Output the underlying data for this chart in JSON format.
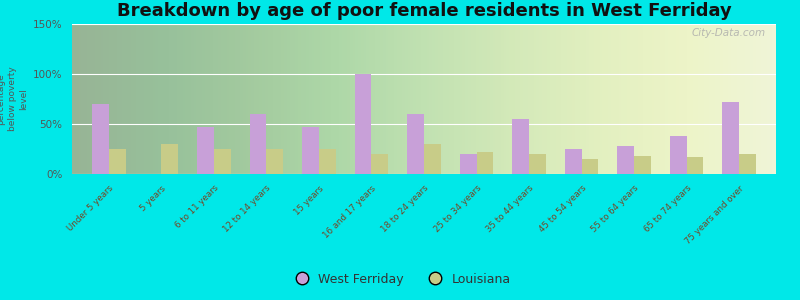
{
  "title": "Breakdown by age of poor female residents in West Ferriday",
  "ylabel": "percentage\nbelow poverty\nlevel",
  "categories": [
    "Under 5 years",
    "5 years",
    "6 to 11 years",
    "12 to 14 years",
    "15 years",
    "16 and 17 years",
    "18 to 24 years",
    "25 to 34 years",
    "35 to 44 years",
    "45 to 54 years",
    "55 to 64 years",
    "65 to 74 years",
    "75 years and over"
  ],
  "west_ferriday": [
    70,
    0,
    47,
    60,
    47,
    100,
    60,
    20,
    55,
    25,
    28,
    38,
    72
  ],
  "louisiana": [
    25,
    30,
    25,
    25,
    25,
    20,
    30,
    22,
    20,
    15,
    18,
    17,
    20
  ],
  "wf_color": "#c8a0d8",
  "la_color": "#c8cc88",
  "bg_color": "#00e8e8",
  "ylim": [
    0,
    150
  ],
  "yticks": [
    0,
    50,
    100,
    150
  ],
  "ytick_labels": [
    "0%",
    "50%",
    "100%",
    "150%"
  ],
  "title_fontsize": 13,
  "legend_labels": [
    "West Ferriday",
    "Louisiana"
  ],
  "watermark": "City-Data.com"
}
